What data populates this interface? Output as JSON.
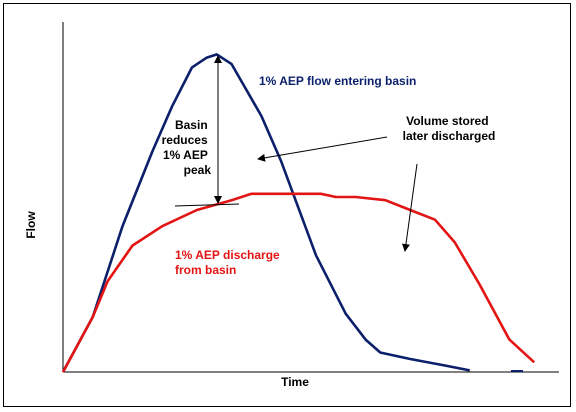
{
  "chart_data": {
    "type": "line",
    "xlabel": "Time",
    "ylabel": "Flow",
    "xlim": [
      0,
      100
    ],
    "ylim": [
      0,
      100
    ],
    "grid": false,
    "legend": "none",
    "series": [
      {
        "name": "1% AEP flow entering basin",
        "color": "#0b1f6b",
        "points": [
          [
            0,
            0
          ],
          [
            6,
            17
          ],
          [
            12,
            45
          ],
          [
            18,
            68
          ],
          [
            22,
            82
          ],
          [
            26,
            94
          ],
          [
            29,
            97
          ],
          [
            31,
            98
          ],
          [
            34,
            95
          ],
          [
            40,
            79
          ],
          [
            44,
            65
          ],
          [
            51,
            36
          ],
          [
            57,
            18
          ],
          [
            61,
            10
          ],
          [
            64,
            6
          ],
          [
            70,
            4
          ],
          [
            77,
            2
          ],
          [
            82,
            0.5
          ]
        ]
      },
      {
        "name": "1% AEP discharge from basin",
        "color": "#e31414",
        "points": [
          [
            0,
            0
          ],
          [
            6,
            17
          ],
          [
            9,
            28
          ],
          [
            14,
            39
          ],
          [
            20,
            45
          ],
          [
            27,
            50
          ],
          [
            34,
            53
          ],
          [
            38,
            55
          ],
          [
            44,
            55
          ],
          [
            52,
            55
          ],
          [
            55,
            54
          ],
          [
            59,
            54
          ],
          [
            65,
            53
          ],
          [
            70,
            50
          ],
          [
            75,
            47
          ],
          [
            79,
            40
          ],
          [
            84,
            27
          ],
          [
            90,
            10
          ],
          [
            95,
            3
          ]
        ]
      }
    ],
    "annotations": [
      {
        "id": "inflow-label",
        "text": "1% AEP flow entering basin",
        "color": "#0b1f6b"
      },
      {
        "id": "basin-reduces-label",
        "lines": [
          "Basin",
          "reduces",
          "1% AEP",
          "peak"
        ],
        "color": "#000000"
      },
      {
        "id": "volume-stored-label",
        "lines": [
          "Volume stored",
          "later discharged"
        ],
        "color": "#000000"
      },
      {
        "id": "discharge-label",
        "lines": [
          "1% AEP discharge",
          "from basin"
        ],
        "color": "#e31414"
      }
    ]
  }
}
